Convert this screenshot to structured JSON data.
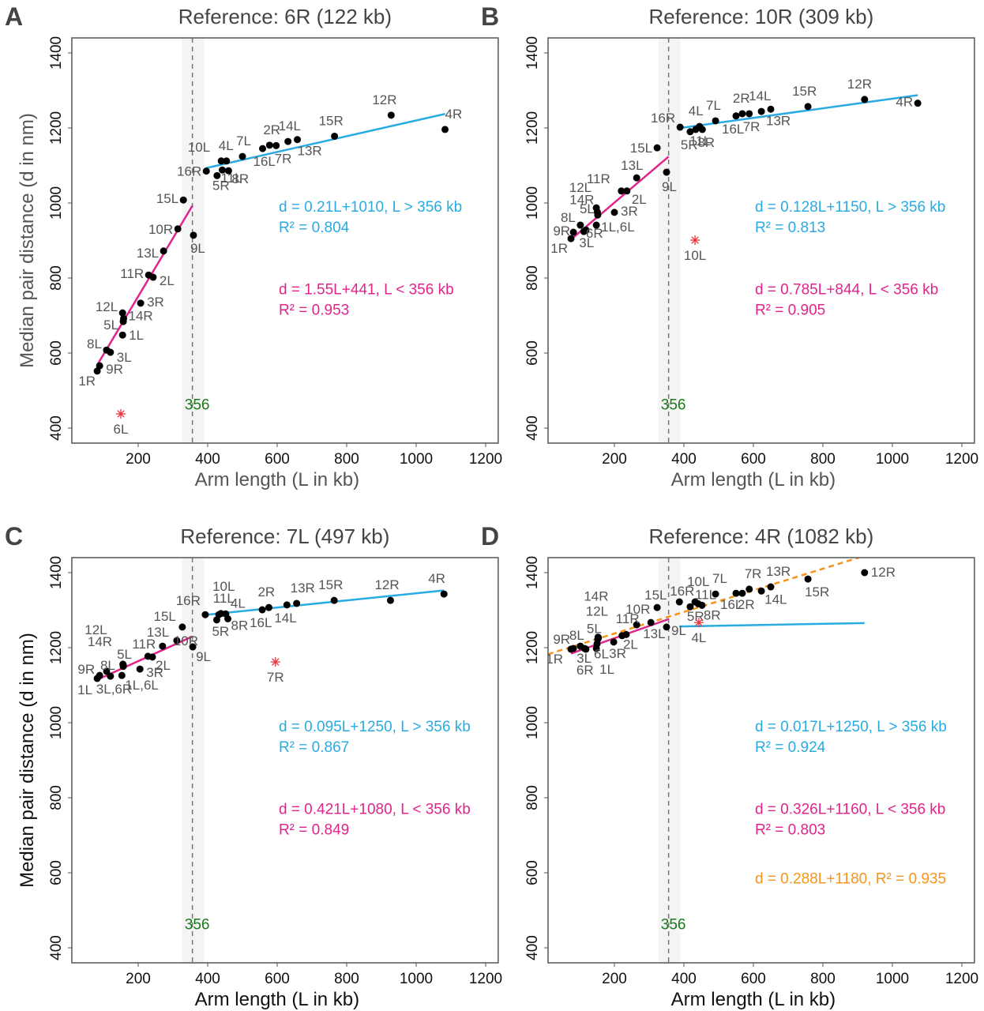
{
  "figure": {
    "shared": {
      "xlabel": "Arm length (L  in kb)",
      "ylabel": "Median pair distance (d  in nm)",
      "x_ticks": [
        200,
        400,
        600,
        800,
        1000,
        1200
      ],
      "y_ticks": [
        400,
        600,
        800,
        1000,
        1200,
        1400
      ],
      "xlim": [
        9,
        1236
      ],
      "ylim": [
        360,
        1440
      ],
      "breakpoint": 356,
      "breakpoint_label": "356",
      "colors": {
        "above_fit": "#29abe2",
        "below_fit": "#e0248c",
        "overall_fit": "#f7941d",
        "breakpoint_label": "#1a7a1a",
        "reference_marker": "#e8333a",
        "points": "#000000",
        "labels": "#555555"
      }
    }
  },
  "chart_data": [
    {
      "type": "scatter",
      "panel": "A",
      "title": "Reference: 6R (122 kb)",
      "xlabel": "Arm length (L  in kb)",
      "ylabel": "Median pair distance (d  in nm)",
      "xlim": [
        9,
        1236
      ],
      "ylim": [
        360,
        1440
      ],
      "grid": false,
      "breakpoint": 356,
      "points": [
        {
          "label": "1R",
          "L": 82,
          "d": 552
        },
        {
          "label": "9R",
          "L": 89,
          "d": 566
        },
        {
          "label": "8L",
          "L": 109,
          "d": 608
        },
        {
          "label": "3L",
          "L": 120,
          "d": 602
        },
        {
          "label": "1L",
          "L": 155,
          "d": 648
        },
        {
          "label": "5L",
          "L": 157,
          "d": 684
        },
        {
          "label": "14R",
          "L": 158,
          "d": 692
        },
        {
          "label": "12L",
          "L": 155,
          "d": 707
        },
        {
          "label": "3R",
          "L": 207,
          "d": 733
        },
        {
          "label": "11R",
          "L": 230,
          "d": 808
        },
        {
          "label": "2L",
          "L": 243,
          "d": 802
        },
        {
          "label": "13L",
          "L": 273,
          "d": 872
        },
        {
          "label": "10R",
          "L": 314,
          "d": 931
        },
        {
          "label": "15L",
          "L": 330,
          "d": 1008
        },
        {
          "label": "9L",
          "L": 359,
          "d": 914
        },
        {
          "label": "16R",
          "L": 396,
          "d": 1085
        },
        {
          "label": "5R",
          "L": 427,
          "d": 1073
        },
        {
          "label": "10L",
          "L": 439,
          "d": 1112
        },
        {
          "label": "4L",
          "L": 454,
          "d": 1112
        },
        {
          "label": "11L",
          "L": 442,
          "d": 1088
        },
        {
          "label": "8R",
          "L": 460,
          "d": 1086
        },
        {
          "label": "7L",
          "L": 500,
          "d": 1124
        },
        {
          "label": "16L",
          "L": 558,
          "d": 1145
        },
        {
          "label": "2R",
          "L": 578,
          "d": 1154
        },
        {
          "label": "7R",
          "L": 597,
          "d": 1153
        },
        {
          "label": "14L",
          "L": 631,
          "d": 1164
        },
        {
          "label": "13R",
          "L": 658,
          "d": 1169
        },
        {
          "label": "15R",
          "L": 765,
          "d": 1178
        },
        {
          "label": "12R",
          "L": 928,
          "d": 1234
        },
        {
          "label": "4R",
          "L": 1083,
          "d": 1196
        }
      ],
      "reference_outlier": {
        "label": "6L",
        "L": 150,
        "d": 438
      },
      "fits": [
        {
          "name": "above",
          "slope": 0.21,
          "intercept": 1010,
          "range": [
            396,
            1083
          ],
          "text": "d = 0.21L+1010, L > 356 kb",
          "r2_text": "R² = 0.804"
        },
        {
          "name": "below",
          "slope": 1.55,
          "intercept": 441,
          "range": [
            82,
            356
          ],
          "text": "d = 1.55L+441, L < 356 kb",
          "r2_text": "R² = 0.953"
        }
      ]
    },
    {
      "type": "scatter",
      "panel": "B",
      "title": "Reference: 10R (309 kb)",
      "xlabel": "Arm length (L  in kb)",
      "ylabel": "",
      "xlim": [
        9,
        1236
      ],
      "ylim": [
        360,
        1440
      ],
      "grid": false,
      "breakpoint": 356,
      "points": [
        {
          "label": "1R",
          "L": 75,
          "d": 905
        },
        {
          "label": "9R",
          "L": 82,
          "d": 922
        },
        {
          "label": "3L",
          "L": 112,
          "d": 924
        },
        {
          "label": "6R",
          "L": 118,
          "d": 928
        },
        {
          "label": "8L",
          "L": 102,
          "d": 941
        },
        {
          "label": "1L,6L",
          "L": 148,
          "d": 941
        },
        {
          "label": "5L",
          "L": 152,
          "d": 968
        },
        {
          "label": "14R",
          "L": 151,
          "d": 976
        },
        {
          "label": "12L",
          "L": 148,
          "d": 987
        },
        {
          "label": "3R",
          "L": 200,
          "d": 975
        },
        {
          "label": "11R",
          "L": 220,
          "d": 1032
        },
        {
          "label": "2L",
          "L": 236,
          "d": 1032
        },
        {
          "label": "13L",
          "L": 264,
          "d": 1067
        },
        {
          "label": "15L",
          "L": 323,
          "d": 1147
        },
        {
          "label": "9L",
          "L": 350,
          "d": 1082
        },
        {
          "label": "16R",
          "L": 389,
          "d": 1202
        },
        {
          "label": "5R",
          "L": 418,
          "d": 1190
        },
        {
          "label": "11L",
          "L": 434,
          "d": 1196
        },
        {
          "label": "4L",
          "L": 445,
          "d": 1204
        },
        {
          "label": "8R",
          "L": 453,
          "d": 1196
        },
        {
          "label": "7L",
          "L": 491,
          "d": 1219
        },
        {
          "label": "16L",
          "L": 550,
          "d": 1232
        },
        {
          "label": "2R",
          "L": 568,
          "d": 1238
        },
        {
          "label": "7R",
          "L": 588,
          "d": 1238
        },
        {
          "label": "14L",
          "L": 623,
          "d": 1244
        },
        {
          "label": "13R",
          "L": 650,
          "d": 1250
        },
        {
          "label": "15R",
          "L": 757,
          "d": 1257
        },
        {
          "label": "12R",
          "L": 920,
          "d": 1276
        },
        {
          "label": "4R",
          "L": 1073,
          "d": 1266
        }
      ],
      "reference_outlier": {
        "label": "10L",
        "L": 432,
        "d": 901
      },
      "fits": [
        {
          "name": "above",
          "slope": 0.128,
          "intercept": 1150,
          "range": [
            389,
            1073
          ],
          "text": "d = 0.128L+1150, L > 356 kb",
          "r2_text": "R² = 0.813"
        },
        {
          "name": "below",
          "slope": 0.785,
          "intercept": 844,
          "range": [
            75,
            356
          ],
          "text": "d = 0.785L+844, L < 356 kb",
          "r2_text": "R² = 0.905"
        }
      ]
    },
    {
      "type": "scatter",
      "panel": "C",
      "title": "Reference: 7L (497 kb)",
      "xlabel": "Arm length (L  in kb)",
      "ylabel": "Median pair distance (d  in nm)",
      "xlim": [
        9,
        1236
      ],
      "ylim": [
        360,
        1440
      ],
      "grid": false,
      "breakpoint": 356,
      "points": [
        {
          "label": "1L",
          "L": 82,
          "d": 1118
        },
        {
          "label": "9R",
          "L": 89,
          "d": 1126
        },
        {
          "label": "8L",
          "L": 109,
          "d": 1137
        },
        {
          "label": "3L,6R",
          "L": 120,
          "d": 1124
        },
        {
          "label": "1L,6L",
          "L": 153,
          "d": 1126
        },
        {
          "label": "5L",
          "L": 157,
          "d": 1150
        },
        {
          "label": "14R",
          "L": 157,
          "d": 1154
        },
        {
          "label": "12L",
          "L": 156,
          "d": 1156
        },
        {
          "label": "3R",
          "L": 205,
          "d": 1143
        },
        {
          "label": "11R",
          "L": 228,
          "d": 1177
        },
        {
          "label": "2L",
          "L": 241,
          "d": 1175
        },
        {
          "label": "13L",
          "L": 270,
          "d": 1204
        },
        {
          "label": "10R",
          "L": 311,
          "d": 1219
        },
        {
          "label": "15L",
          "L": 327,
          "d": 1255
        },
        {
          "label": "9L",
          "L": 357,
          "d": 1202
        },
        {
          "label": "16R",
          "L": 393,
          "d": 1288
        },
        {
          "label": "5R",
          "L": 426,
          "d": 1274
        },
        {
          "label": "10L",
          "L": 432,
          "d": 1288
        },
        {
          "label": "11L",
          "L": 438,
          "d": 1291
        },
        {
          "label": "4L",
          "L": 452,
          "d": 1290
        },
        {
          "label": "8R",
          "L": 458,
          "d": 1277
        },
        {
          "label": "16L",
          "L": 557,
          "d": 1301
        },
        {
          "label": "2R",
          "L": 576,
          "d": 1307
        },
        {
          "label": "14L",
          "L": 628,
          "d": 1314
        },
        {
          "label": "13R",
          "L": 656,
          "d": 1318
        },
        {
          "label": "15R",
          "L": 764,
          "d": 1326
        },
        {
          "label": "12R",
          "L": 926,
          "d": 1326
        },
        {
          "label": "4R",
          "L": 1080,
          "d": 1343
        }
      ],
      "reference_outlier": {
        "label": "7R",
        "L": 595,
        "d": 1162
      },
      "fits": [
        {
          "name": "above",
          "slope": 0.095,
          "intercept": 1250,
          "range": [
            393,
            1080
          ],
          "text": "d = 0.095L+1250, L > 356 kb",
          "r2_text": "R² = 0.867"
        },
        {
          "name": "below",
          "slope": 0.421,
          "intercept": 1080,
          "range": [
            82,
            356
          ],
          "text": "d = 0.421L+1080, L < 356 kb",
          "r2_text": "R² = 0.849"
        }
      ]
    },
    {
      "type": "scatter",
      "panel": "D",
      "title": "Reference: 4R (1082 kb)",
      "xlabel": "Arm length (L  in kb)",
      "ylabel": "",
      "xlim": [
        9,
        1236
      ],
      "ylim": [
        360,
        1440
      ],
      "grid": false,
      "breakpoint": 356,
      "points": [
        {
          "label": "1R",
          "L": 75,
          "d": 1196
        },
        {
          "label": "9R",
          "L": 82,
          "d": 1198
        },
        {
          "label": "8L",
          "L": 102,
          "d": 1204
        },
        {
          "label": "3L",
          "L": 114,
          "d": 1198
        },
        {
          "label": "6R",
          "L": 118,
          "d": 1196
        },
        {
          "label": "1L",
          "L": 148,
          "d": 1198
        },
        {
          "label": "6L",
          "L": 150,
          "d": 1210
        },
        {
          "label": "5L",
          "L": 152,
          "d": 1222
        },
        {
          "label": "12L",
          "L": 154,
          "d": 1226
        },
        {
          "label": "14R",
          "L": 153,
          "d": 1228
        },
        {
          "label": "3R",
          "L": 198,
          "d": 1215
        },
        {
          "label": "11R",
          "L": 222,
          "d": 1232
        },
        {
          "label": "2L",
          "L": 234,
          "d": 1235
        },
        {
          "label": "10R",
          "L": 264,
          "d": 1261
        },
        {
          "label": "13L",
          "L": 305,
          "d": 1267
        },
        {
          "label": "15L",
          "L": 323,
          "d": 1307
        },
        {
          "label": "9L",
          "L": 350,
          "d": 1255
        },
        {
          "label": "16R",
          "L": 387,
          "d": 1322
        },
        {
          "label": "5R",
          "L": 418,
          "d": 1309
        },
        {
          "label": "10L",
          "L": 432,
          "d": 1322
        },
        {
          "label": "11L",
          "L": 441,
          "d": 1317
        },
        {
          "label": "8R",
          "L": 452,
          "d": 1313
        },
        {
          "label": "7L",
          "L": 491,
          "d": 1343
        },
        {
          "label": "16L",
          "L": 550,
          "d": 1345
        },
        {
          "label": "2R",
          "L": 568,
          "d": 1345
        },
        {
          "label": "7R",
          "L": 588,
          "d": 1356
        },
        {
          "label": "14L",
          "L": 623,
          "d": 1351
        },
        {
          "label": "13R",
          "L": 650,
          "d": 1362
        },
        {
          "label": "15R",
          "L": 757,
          "d": 1383
        },
        {
          "label": "12R",
          "L": 920,
          "d": 1400
        }
      ],
      "reference_outlier": {
        "label": "4L",
        "L": 443,
        "d": 1267
      },
      "fits": [
        {
          "name": "above",
          "slope": 0.017,
          "intercept": 1250,
          "range": [
            387,
            920
          ],
          "text": "d = 0.017L+1250, L > 356 kb",
          "r2_text": "R² = 0.924"
        },
        {
          "name": "below",
          "slope": 0.326,
          "intercept": 1160,
          "range": [
            75,
            356
          ],
          "text": "d = 0.326L+1160, L < 356 kb",
          "r2_text": "R² = 0.803"
        },
        {
          "name": "overall",
          "slope": 0.288,
          "intercept": 1180,
          "range": [
            9,
            950
          ],
          "text": "d = 0.288L+1180, R² = 0.935",
          "r2_text": ""
        }
      ]
    }
  ]
}
